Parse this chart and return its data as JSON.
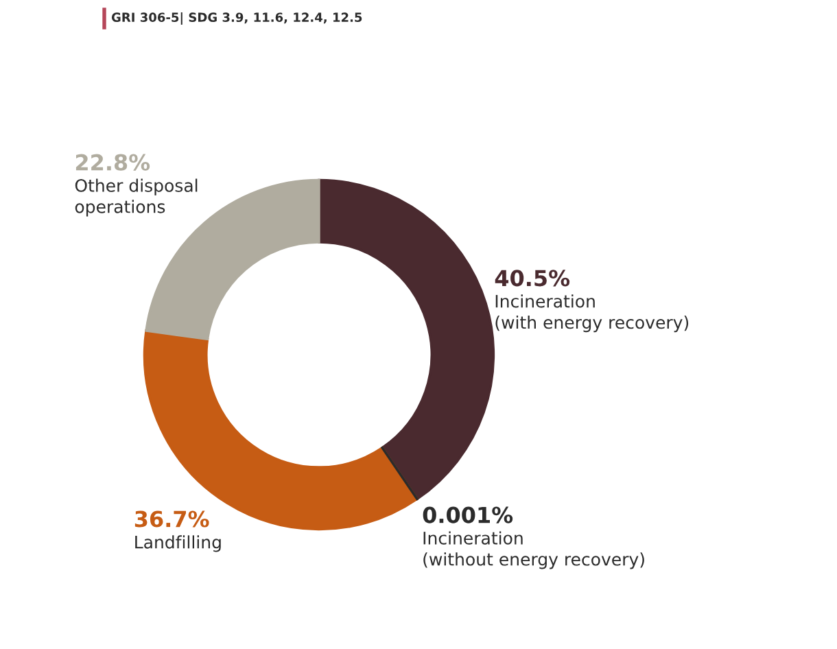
{
  "chart_data": {
    "type": "donut",
    "title": "GRI 306-5| SDG 3.9, 11.6, 12.4, 12.5",
    "categories": [
      "Incineration\n(with energy recovery)",
      "Incineration\n(without energy recovery)",
      "Landfilling",
      "Other disposal\noperations"
    ],
    "values": [
      40.5,
      0.001,
      36.7,
      22.8
    ],
    "value_labels": [
      "40.5%",
      "0.001%",
      "36.7%",
      "22.8%"
    ],
    "colors": [
      "#4a2a2f",
      "#2b2b2b",
      "#c65c14",
      "#b0ac9f"
    ],
    "legend": false
  }
}
